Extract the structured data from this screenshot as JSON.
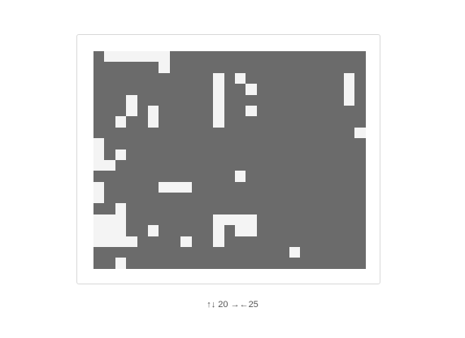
{
  "board": {
    "rows": 20,
    "cols": 25,
    "colors": {
      "wall": "#6b6b6b",
      "open": "#f4f4f4"
    },
    "grid": [
      "1000000111111111111111111",
      "1111110111111111111111111",
      "1111111111101011111111101",
      "1113111111101101111111101",
      "1110111111101111111111101",
      "1110101111101101111111111",
      "1101101111101111111111111",
      "1111111111111111111111110",
      "0111111111111111111111111",
      "0101111111111111111111111",
      "0011111111111111111111111",
      "1111111111111011111111111",
      "0111110001111111111111111",
      "0111111111111111111111111",
      "1101111111111111111111111",
      "0001111111100001111111111",
      "0001101111101001111111111",
      "0000111101101111111111111",
      "1111111111111111110111111",
      "1101111111111111111111111"
    ]
  },
  "status": {
    "rows_glyph": "↑↓",
    "rows": "20",
    "cols_glyph": "→←",
    "cols": "25"
  }
}
